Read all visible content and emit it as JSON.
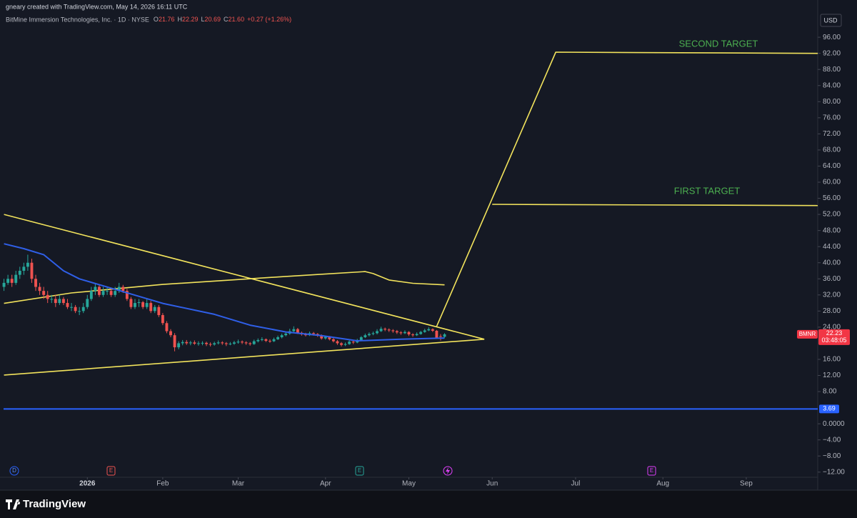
{
  "chart_data": {
    "type": "candlestick",
    "watermark": "gneary created with TradingView.com, May 14, 2026 16:11 UTC",
    "title": "BitMine Immersion Technologies, Inc. · 1D · NYSE",
    "ohlc_legend": [
      [
        "O",
        "21.76"
      ],
      [
        "H",
        "22.29"
      ],
      [
        "L",
        "20.69"
      ],
      [
        "C",
        "21.60"
      ]
    ],
    "change": "+0.27 (+1.26%)",
    "currency": "USD",
    "up_color": "#26a69a",
    "down_color": "#ef5350",
    "xlim": [
      -1,
      205
    ],
    "ylim": [
      -16.3,
      101.7
    ],
    "grid": false,
    "xticks": [
      {
        "value": 21,
        "label": "2026"
      },
      {
        "value": 40,
        "label": "Feb"
      },
      {
        "value": 59,
        "label": "Mar"
      },
      {
        "value": 81,
        "label": "Apr"
      },
      {
        "value": 102,
        "label": "May"
      },
      {
        "value": 123,
        "label": "Jun"
      },
      {
        "value": 144,
        "label": "Jul"
      },
      {
        "value": 166,
        "label": "Aug"
      },
      {
        "value": 187,
        "label": "Sep"
      }
    ],
    "yticks": [
      {
        "value": 96,
        "label": "96.00"
      },
      {
        "value": 92,
        "label": "92.00"
      },
      {
        "value": 88,
        "label": "88.00"
      },
      {
        "value": 84,
        "label": "84.00"
      },
      {
        "value": 80,
        "label": "80.00"
      },
      {
        "value": 76,
        "label": "76.00"
      },
      {
        "value": 72,
        "label": "72.00"
      },
      {
        "value": 68,
        "label": "68.00"
      },
      {
        "value": 64,
        "label": "64.00"
      },
      {
        "value": 60,
        "label": "60.00"
      },
      {
        "value": 56,
        "label": "56.00"
      },
      {
        "value": 52,
        "label": "52.00"
      },
      {
        "value": 48,
        "label": "48.00"
      },
      {
        "value": 44,
        "label": "44.00"
      },
      {
        "value": 40,
        "label": "40.00"
      },
      {
        "value": 36,
        "label": "36.00"
      },
      {
        "value": 32,
        "label": "32.00"
      },
      {
        "value": 28,
        "label": "28.00"
      },
      {
        "value": 24,
        "label": "24.00"
      },
      {
        "value": 16,
        "label": "16.00"
      },
      {
        "value": 12,
        "label": "12.00"
      },
      {
        "value": 8,
        "label": "8.00"
      },
      {
        "value": 0,
        "label": "0.0000"
      },
      {
        "value": -4,
        "label": "−4.00"
      },
      {
        "value": -8,
        "label": "−8.00"
      },
      {
        "value": -12,
        "label": "−12.00"
      }
    ],
    "candles": {
      "x": [
        0,
        1,
        2,
        3,
        4,
        5,
        6,
        7,
        8,
        9,
        10,
        11,
        12,
        13,
        14,
        15,
        16,
        17,
        18,
        19,
        20,
        21,
        22,
        23,
        24,
        25,
        26,
        27,
        28,
        29,
        30,
        31,
        32,
        33,
        34,
        35,
        36,
        37,
        38,
        39,
        40,
        41,
        42,
        43,
        44,
        45,
        46,
        47,
        48,
        49,
        50,
        51,
        52,
        53,
        54,
        55,
        56,
        57,
        58,
        59,
        60,
        61,
        62,
        63,
        64,
        65,
        66,
        67,
        68,
        69,
        70,
        71,
        72,
        73,
        74,
        75,
        76,
        77,
        78,
        79,
        80,
        81,
        82,
        83,
        84,
        85,
        86,
        87,
        88,
        89,
        90,
        91,
        92,
        93,
        94,
        95,
        96,
        97,
        98,
        99,
        100,
        101,
        102,
        103,
        104,
        105,
        106,
        107,
        108,
        109,
        110,
        111
      ],
      "open": [
        34,
        35,
        36,
        35,
        37,
        38,
        39,
        40,
        36,
        34,
        33,
        32,
        31,
        31,
        30,
        31,
        30,
        29,
        29,
        28,
        28,
        29,
        31,
        33,
        34,
        32,
        33,
        33,
        32,
        33,
        34,
        33,
        31,
        29,
        30,
        30.2,
        29,
        30,
        28,
        29,
        27,
        25,
        23,
        22,
        19,
        20,
        20.3,
        20,
        20.2,
        19.9,
        20,
        20.1,
        19.8,
        19.7,
        20,
        20.2,
        20,
        19.8,
        19.9,
        20.2,
        20.4,
        20.2,
        20,
        19.8,
        20.5,
        20.8,
        21,
        20.6,
        20.5,
        21,
        21.5,
        22,
        22.4,
        23,
        23.5,
        22.6,
        22.2,
        22,
        22.5,
        22.3,
        22,
        21.2,
        21.6,
        21,
        20.5,
        20,
        19.6,
        19.8,
        20.4,
        20.2,
        20.8,
        21.5,
        22,
        22.3,
        22.5,
        23,
        23.6,
        23.4,
        23.2,
        23,
        22.7,
        22.5,
        22.8,
        22.2,
        22,
        22.3,
        22.8,
        23.2,
        23.5,
        23.1,
        21.76,
        21.6
      ],
      "high": [
        36,
        37,
        37,
        38,
        39,
        40,
        42,
        41,
        37,
        35,
        34,
        33,
        32,
        32,
        32,
        31.5,
        31,
        30,
        29.5,
        29,
        30,
        32,
        34,
        35,
        34.5,
        34,
        34,
        33.5,
        34,
        35,
        34.5,
        33.5,
        31.5,
        31,
        31,
        30.5,
        31,
        30.5,
        29.5,
        29.5,
        27.5,
        25.5,
        23.5,
        22.5,
        20.5,
        20.8,
        20.8,
        20.6,
        20.7,
        20.5,
        20.5,
        20.4,
        20.2,
        20.4,
        20.7,
        20.5,
        20.3,
        20.3,
        20.6,
        20.9,
        20.7,
        20.5,
        20.3,
        20.9,
        21.2,
        21.5,
        21.2,
        21,
        21.4,
        21.9,
        22.4,
        22.9,
        23.6,
        24.2,
        23.8,
        22.9,
        22.6,
        22.9,
        22.8,
        22.5,
        22.2,
        21.9,
        21.8,
        21.3,
        20.8,
        20.3,
        20.2,
        20.8,
        20.7,
        21.1,
        21.8,
        22.4,
        22.7,
        22.9,
        23.5,
        24.1,
        23.9,
        23.7,
        23.5,
        23.3,
        23,
        23.2,
        23,
        22.5,
        22.7,
        23.1,
        23.6,
        24,
        23.7,
        23.3,
        22.29,
        22.5
      ],
      "low": [
        33,
        34.5,
        34,
        34.5,
        36,
        37,
        38,
        35,
        33,
        32,
        31,
        30,
        30,
        29,
        29.5,
        29.5,
        28.5,
        28,
        27.5,
        27,
        27.5,
        28.5,
        30.5,
        32,
        31.5,
        31.5,
        32,
        31.5,
        31.5,
        32.5,
        32.5,
        30.5,
        28.5,
        28.5,
        29,
        28.5,
        28.5,
        27.5,
        27.5,
        26.5,
        24.5,
        22.5,
        21.5,
        18,
        18.5,
        19.5,
        19.6,
        19.5,
        19.6,
        19.4,
        19.5,
        19.3,
        19.2,
        19.4,
        19.7,
        19.6,
        19.3,
        19.5,
        19.6,
        19.9,
        19.8,
        19.6,
        19.4,
        19.6,
        20.2,
        20.5,
        20.3,
        20.1,
        20.3,
        20.8,
        21.2,
        21.7,
        22.1,
        22.7,
        22.3,
        21.9,
        21.7,
        21.8,
        21.9,
        21.6,
        20.9,
        20.9,
        20.7,
        20.2,
        19.6,
        19.2,
        19.3,
        19.6,
        19.8,
        20,
        20.6,
        21.3,
        21.7,
        22,
        22.2,
        22.8,
        23,
        22.8,
        22.6,
        22.3,
        22.1,
        22.3,
        21.8,
        21.6,
        21.8,
        22.1,
        22.6,
        23,
        22.8,
        21.1,
        20.69,
        21.4
      ],
      "close": [
        35,
        36,
        35,
        37,
        38,
        39,
        40,
        36,
        34,
        33,
        32,
        31,
        31,
        30,
        31,
        30,
        29,
        29,
        28,
        28,
        29,
        31,
        33,
        34,
        32,
        33,
        33,
        32,
        33,
        34,
        33,
        31,
        29,
        30,
        30.2,
        29,
        30,
        28,
        29,
        27,
        25,
        23,
        22,
        19,
        20,
        20.3,
        20,
        20.2,
        19.9,
        20,
        20.1,
        19.8,
        19.7,
        20,
        20.2,
        20,
        19.8,
        19.9,
        20.2,
        20.4,
        20.2,
        20,
        19.8,
        20.5,
        20.8,
        21,
        20.6,
        20.5,
        21,
        21.5,
        22,
        22.4,
        23,
        23.5,
        22.6,
        22.2,
        22,
        22.5,
        22.3,
        22,
        21.2,
        21.6,
        21,
        20.5,
        20,
        19.6,
        19.8,
        20.4,
        20.2,
        20.8,
        21.5,
        22,
        22.3,
        22.5,
        23,
        23.6,
        23.4,
        23.2,
        23,
        22.7,
        22.5,
        22.8,
        22.2,
        22,
        22.3,
        22.8,
        23.2,
        23.5,
        23.1,
        21.33,
        21.6,
        22.23
      ]
    },
    "lines": [
      {
        "color": "#2f5fe8",
        "x": [
          0,
          5,
          10,
          15,
          19,
          28,
          40,
          53,
          62,
          71,
          80,
          89,
          100,
          111
        ],
        "values": [
          44.7,
          43.5,
          42,
          38,
          36,
          33.4,
          29.9,
          27.2,
          24.5,
          22.8,
          21.9,
          20.6,
          21,
          21.3
        ]
      },
      {
        "color": "#f2e35c",
        "x": [
          0,
          17,
          40,
          71,
          91,
          93,
          97,
          103,
          111
        ],
        "values": [
          29.9,
          32.5,
          34.6,
          36.6,
          37.8,
          37.3,
          35.7,
          34.9,
          34.5
        ]
      }
    ],
    "trendlines": [
      {
        "color": "#f2e35c",
        "x": [
          0,
          121
        ],
        "values": [
          52,
          21
        ]
      },
      {
        "color": "#f2e35c",
        "x": [
          0,
          121
        ],
        "values": [
          12.1,
          21
        ]
      },
      {
        "color": "#f2e35c",
        "x": [
          109,
          139,
          205
        ],
        "values": [
          24.2,
          92.3,
          92
        ]
      },
      {
        "color": "#f2e35c",
        "x": [
          123,
          205
        ],
        "values": [
          54.5,
          54.2
        ]
      }
    ],
    "hline": {
      "value": 3.69,
      "color": "#2962ff"
    },
    "annotations": [
      "SECOND TARGET",
      "FIRST TARGET"
    ],
    "price_tag": {
      "symbol": "BMNR",
      "value": 22.23,
      "countdown": "03:48:05",
      "color": "#f23645"
    },
    "events": [
      "D",
      "E",
      "E",
      "E"
    ],
    "footer": "TradingView"
  }
}
